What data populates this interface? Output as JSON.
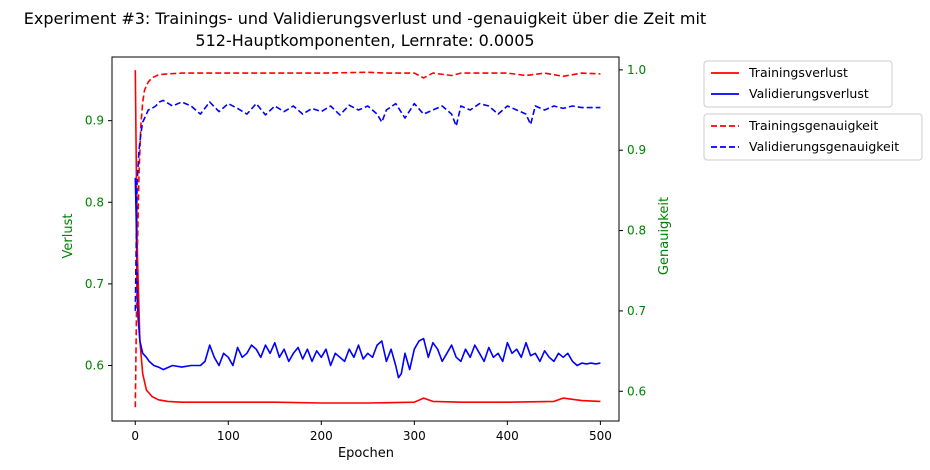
{
  "chart_data": {
    "type": "line",
    "title_line1": "Experiment #3: Trainings- und Validierungsverlust und -genauigkeit über die Zeit mit",
    "title_line2": "512-Hauptkomponenten, Lernrate: 0.0005",
    "xlabel": "Epochen",
    "ylabel_left": "Verlust",
    "ylabel_right": "Genauigkeit",
    "xlim": [
      -25,
      520
    ],
    "ylim_left": [
      0.532,
      0.978
    ],
    "ylim_right": [
      0.563,
      1.016
    ],
    "x_ticks": [
      0,
      100,
      200,
      300,
      400,
      500
    ],
    "y_ticks_left": [
      0.6,
      0.7,
      0.8,
      0.9
    ],
    "y_ticks_right": [
      0.6,
      0.7,
      0.8,
      0.9,
      1.0
    ],
    "tick_label_color": "#008000",
    "grid": false,
    "legend_placement": "outside-right",
    "series": [
      {
        "name": "Trainingsverlust",
        "axis": "left",
        "color": "#ff0000",
        "dash": "solid",
        "x": [
          0,
          2,
          5,
          8,
          12,
          18,
          25,
          35,
          50,
          75,
          100,
          150,
          200,
          250,
          300,
          310,
          320,
          350,
          400,
          450,
          460,
          480,
          500
        ],
        "y": [
          0.962,
          0.75,
          0.63,
          0.59,
          0.57,
          0.562,
          0.558,
          0.556,
          0.555,
          0.555,
          0.555,
          0.555,
          0.554,
          0.554,
          0.555,
          0.56,
          0.556,
          0.555,
          0.555,
          0.556,
          0.56,
          0.557,
          0.556
        ]
      },
      {
        "name": "Validierungsverlust",
        "axis": "left",
        "color": "#0000ff",
        "dash": "solid",
        "x": [
          0,
          1,
          2,
          3,
          5,
          8,
          12,
          15,
          20,
          25,
          30,
          40,
          50,
          60,
          70,
          75,
          80,
          85,
          90,
          95,
          100,
          105,
          110,
          115,
          120,
          125,
          130,
          135,
          140,
          145,
          150,
          155,
          160,
          165,
          170,
          175,
          180,
          185,
          190,
          195,
          200,
          205,
          210,
          215,
          220,
          225,
          230,
          235,
          240,
          245,
          250,
          255,
          260,
          265,
          270,
          275,
          280,
          283,
          286,
          290,
          295,
          300,
          305,
          310,
          315,
          320,
          325,
          330,
          335,
          340,
          345,
          350,
          355,
          360,
          365,
          370,
          375,
          380,
          385,
          390,
          395,
          400,
          405,
          410,
          415,
          420,
          425,
          430,
          435,
          440,
          445,
          450,
          455,
          460,
          465,
          470,
          475,
          480,
          485,
          490,
          495,
          500
        ],
        "y": [
          0.83,
          0.78,
          0.7,
          0.66,
          0.63,
          0.615,
          0.61,
          0.605,
          0.6,
          0.598,
          0.595,
          0.6,
          0.598,
          0.6,
          0.6,
          0.605,
          0.625,
          0.61,
          0.6,
          0.615,
          0.61,
          0.6,
          0.622,
          0.61,
          0.615,
          0.625,
          0.62,
          0.61,
          0.625,
          0.615,
          0.628,
          0.61,
          0.62,
          0.605,
          0.615,
          0.622,
          0.608,
          0.62,
          0.605,
          0.618,
          0.61,
          0.62,
          0.6,
          0.615,
          0.61,
          0.605,
          0.62,
          0.61,
          0.625,
          0.608,
          0.615,
          0.61,
          0.625,
          0.63,
          0.605,
          0.62,
          0.6,
          0.585,
          0.59,
          0.615,
          0.595,
          0.62,
          0.63,
          0.633,
          0.61,
          0.628,
          0.62,
          0.605,
          0.615,
          0.625,
          0.61,
          0.605,
          0.62,
          0.61,
          0.625,
          0.615,
          0.605,
          0.622,
          0.61,
          0.615,
          0.605,
          0.628,
          0.615,
          0.62,
          0.61,
          0.628,
          0.612,
          0.615,
          0.605,
          0.618,
          0.61,
          0.605,
          0.615,
          0.61,
          0.615,
          0.605,
          0.6,
          0.603,
          0.602,
          0.603,
          0.602,
          0.603
        ]
      },
      {
        "name": "Trainingsgenauigkeit",
        "axis": "right",
        "color": "#ff0000",
        "dash": "dashed",
        "x": [
          0,
          2,
          4,
          6,
          8,
          10,
          14,
          18,
          25,
          35,
          50,
          75,
          100,
          150,
          200,
          250,
          270,
          300,
          310,
          320,
          340,
          350,
          400,
          420,
          440,
          460,
          480,
          500
        ],
        "y": [
          0.58,
          0.76,
          0.87,
          0.93,
          0.96,
          0.975,
          0.985,
          0.99,
          0.994,
          0.995,
          0.996,
          0.996,
          0.996,
          0.996,
          0.996,
          0.997,
          0.996,
          0.996,
          0.99,
          0.996,
          0.993,
          0.996,
          0.996,
          0.993,
          0.996,
          0.992,
          0.996,
          0.995
        ]
      },
      {
        "name": "Validierungsgenauigkeit",
        "axis": "right",
        "color": "#0000ff",
        "dash": "dashed",
        "x": [
          0,
          1,
          2,
          4,
          6,
          8,
          10,
          14,
          18,
          22,
          26,
          30,
          40,
          50,
          60,
          70,
          80,
          90,
          100,
          110,
          120,
          130,
          140,
          150,
          160,
          170,
          180,
          190,
          200,
          210,
          220,
          230,
          240,
          250,
          260,
          265,
          270,
          280,
          290,
          300,
          310,
          320,
          330,
          340,
          345,
          350,
          360,
          370,
          380,
          390,
          400,
          410,
          420,
          425,
          430,
          440,
          450,
          460,
          470,
          480,
          490,
          500
        ],
        "y": [
          0.7,
          0.78,
          0.86,
          0.9,
          0.92,
          0.935,
          0.94,
          0.95,
          0.952,
          0.955,
          0.96,
          0.962,
          0.955,
          0.96,
          0.955,
          0.945,
          0.96,
          0.948,
          0.958,
          0.952,
          0.945,
          0.958,
          0.944,
          0.955,
          0.948,
          0.955,
          0.945,
          0.952,
          0.948,
          0.955,
          0.944,
          0.956,
          0.95,
          0.955,
          0.945,
          0.935,
          0.95,
          0.958,
          0.94,
          0.958,
          0.945,
          0.95,
          0.955,
          0.945,
          0.93,
          0.955,
          0.95,
          0.958,
          0.955,
          0.945,
          0.955,
          0.95,
          0.945,
          0.932,
          0.955,
          0.95,
          0.955,
          0.952,
          0.955,
          0.953,
          0.953,
          0.953
        ]
      }
    ],
    "legend_groups": [
      [
        "Trainingsverlust",
        "Validierungsverlust"
      ],
      [
        "Trainingsgenauigkeit",
        "Validierungsgenauigkeit"
      ]
    ]
  }
}
